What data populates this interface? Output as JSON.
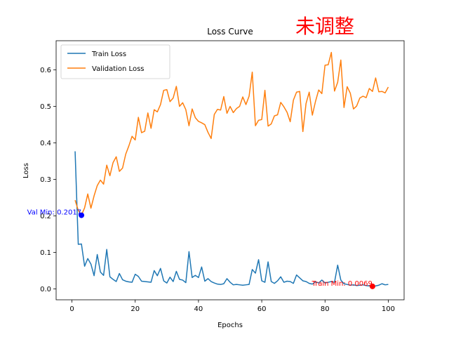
{
  "chart_data": {
    "type": "line",
    "title": "Loss Curve",
    "xlabel": "Epochs",
    "ylabel": "Loss",
    "xlim": [
      -5,
      105
    ],
    "ylim": [
      -0.03,
      0.68
    ],
    "xticks": [
      0,
      20,
      40,
      60,
      80,
      100
    ],
    "yticks": [
      0.0,
      0.1,
      0.2,
      0.3,
      0.4,
      0.5,
      0.6
    ],
    "ytick_labels": [
      "0.0",
      "0.1",
      "0.2",
      "0.3",
      "0.4",
      "0.5",
      "0.6"
    ],
    "grid": false,
    "legend_position": "upper-left",
    "x": [
      1,
      2,
      3,
      4,
      5,
      6,
      7,
      8,
      9,
      10,
      11,
      12,
      13,
      14,
      15,
      16,
      17,
      18,
      19,
      20,
      21,
      22,
      23,
      24,
      25,
      26,
      27,
      28,
      29,
      30,
      31,
      32,
      33,
      34,
      35,
      36,
      37,
      38,
      39,
      40,
      41,
      42,
      43,
      44,
      45,
      46,
      47,
      48,
      49,
      50,
      51,
      52,
      53,
      54,
      55,
      56,
      57,
      58,
      59,
      60,
      61,
      62,
      63,
      64,
      65,
      66,
      67,
      68,
      69,
      70,
      71,
      72,
      73,
      74,
      75,
      76,
      77,
      78,
      79,
      80,
      81,
      82,
      83,
      84,
      85,
      86,
      87,
      88,
      89,
      90,
      91,
      92,
      93,
      94,
      95,
      96,
      97,
      98,
      99,
      100
    ],
    "series": [
      {
        "name": "Train Loss",
        "color": "#1f77b4",
        "values": [
          0.377,
          0.122,
          0.123,
          0.062,
          0.083,
          0.068,
          0.036,
          0.094,
          0.046,
          0.037,
          0.108,
          0.033,
          0.026,
          0.02,
          0.042,
          0.025,
          0.021,
          0.019,
          0.018,
          0.04,
          0.034,
          0.021,
          0.02,
          0.019,
          0.018,
          0.05,
          0.036,
          0.056,
          0.022,
          0.016,
          0.032,
          0.02,
          0.048,
          0.026,
          0.024,
          0.017,
          0.102,
          0.031,
          0.037,
          0.031,
          0.06,
          0.021,
          0.028,
          0.02,
          0.016,
          0.013,
          0.012,
          0.014,
          0.028,
          0.018,
          0.011,
          0.012,
          0.011,
          0.01,
          0.011,
          0.012,
          0.053,
          0.043,
          0.08,
          0.022,
          0.018,
          0.074,
          0.02,
          0.015,
          0.022,
          0.033,
          0.018,
          0.021,
          0.02,
          0.015,
          0.038,
          0.03,
          0.022,
          0.02,
          0.015,
          0.013,
          0.019,
          0.016,
          0.024,
          0.016,
          0.018,
          0.02,
          0.018,
          0.065,
          0.024,
          0.014,
          0.012,
          0.01,
          0.011,
          0.009,
          0.01,
          0.011,
          0.009,
          0.008,
          0.007,
          0.008,
          0.01,
          0.014,
          0.011,
          0.012
        ]
      },
      {
        "name": "Validation Loss",
        "color": "#ff7f0e",
        "values": [
          0.243,
          0.215,
          0.202,
          0.222,
          0.26,
          0.221,
          0.255,
          0.283,
          0.298,
          0.287,
          0.339,
          0.31,
          0.346,
          0.362,
          0.322,
          0.331,
          0.369,
          0.392,
          0.418,
          0.408,
          0.47,
          0.428,
          0.432,
          0.482,
          0.44,
          0.491,
          0.485,
          0.505,
          0.544,
          0.546,
          0.513,
          0.523,
          0.555,
          0.5,
          0.51,
          0.491,
          0.447,
          0.493,
          0.469,
          0.459,
          0.455,
          0.45,
          0.429,
          0.412,
          0.478,
          0.492,
          0.49,
          0.527,
          0.481,
          0.5,
          0.483,
          0.494,
          0.5,
          0.526,
          0.505,
          0.528,
          0.594,
          0.447,
          0.462,
          0.464,
          0.544,
          0.446,
          0.452,
          0.474,
          0.477,
          0.511,
          0.499,
          0.484,
          0.458,
          0.517,
          0.539,
          0.541,
          0.431,
          0.508,
          0.539,
          0.476,
          0.514,
          0.545,
          0.535,
          0.613,
          0.614,
          0.648,
          0.542,
          0.566,
          0.627,
          0.497,
          0.554,
          0.536,
          0.493,
          0.501,
          0.523,
          0.528,
          0.524,
          0.549,
          0.541,
          0.578,
          0.54,
          0.541,
          0.537,
          0.553
        ]
      }
    ],
    "annotations": [
      {
        "text": "Val Min: 0.2017",
        "x": 3,
        "y": 0.2017,
        "color": "#0000ff"
      },
      {
        "text": "Train Min: 0.0069",
        "x": 95,
        "y": 0.0069,
        "color": "#ff0000"
      }
    ]
  },
  "corner_label": "未调整"
}
